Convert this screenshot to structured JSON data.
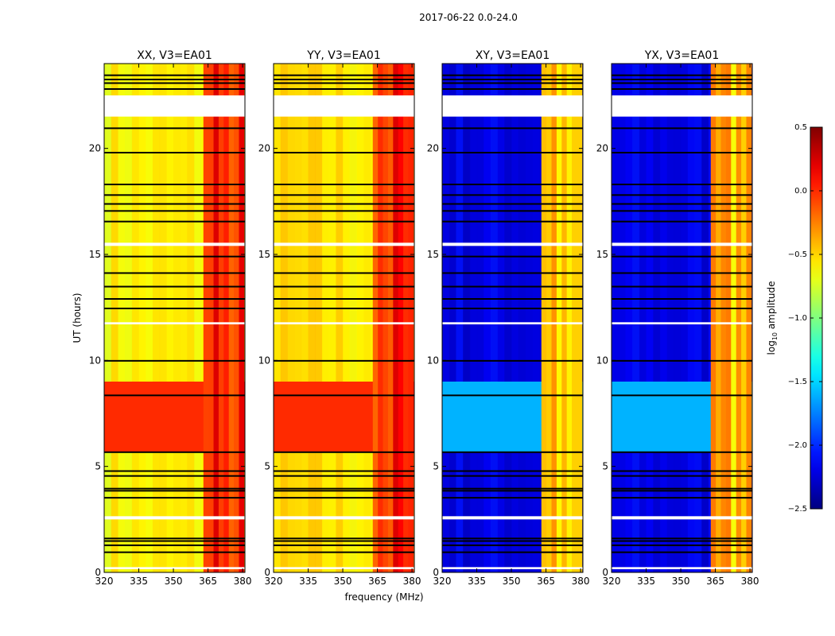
{
  "figure": {
    "suptitle": "2017-06-22 0.0-24.0",
    "xlabel": "frequency (MHz)",
    "ylabel": "UT (hours)"
  },
  "colorbar": {
    "label_base": "log",
    "label_sub": "10",
    "label_rest": " amplitude",
    "ticks": [
      "0.5",
      "0.0",
      "−0.5",
      "−1.0",
      "−1.5",
      "−2.0",
      "−2.5"
    ],
    "tick_values": [
      0.5,
      0.0,
      -0.5,
      -1.0,
      -1.5,
      -2.0,
      -2.5
    ],
    "range": [
      -2.5,
      0.5
    ],
    "colormap": "jet"
  },
  "chart_data": {
    "type": "heatmap",
    "x_range_mhz": [
      320,
      381
    ],
    "y_range_hours": [
      0,
      24
    ],
    "x_ticks": [
      "320",
      "335",
      "350",
      "365",
      "380"
    ],
    "x_tick_values": [
      320,
      335,
      350,
      365,
      380
    ],
    "y_ticks": [
      "0",
      "5",
      "10",
      "15",
      "20"
    ],
    "y_tick_values": [
      0,
      5,
      10,
      15,
      20
    ],
    "value_scale": "log10 amplitude",
    "gaps_hours": [
      [
        21.5,
        22.5
      ],
      [
        15.4,
        15.55
      ],
      [
        11.7,
        11.8
      ],
      [
        2.5,
        2.65
      ],
      [
        0.15,
        0.25
      ]
    ],
    "flagged_lines_hours": [
      0.95,
      1.28,
      1.48,
      1.6,
      3.52,
      3.85,
      3.95,
      4.55,
      4.78,
      5.67,
      8.35,
      9.98,
      12.45,
      12.9,
      13.48,
      14.12,
      14.9,
      16.55,
      17.05,
      17.38,
      17.8,
      18.3,
      19.8,
      20.95,
      22.8,
      23.08,
      23.25,
      23.45
    ],
    "panels": [
      {
        "title": "XX, V3=EA01",
        "background_level": -0.6,
        "strong_period_level": 0.0,
        "strong_period_hours": [
          5.7,
          9.0
        ],
        "band_level": 0.25,
        "band_mhz": [
          363,
          380
        ]
      },
      {
        "title": "YY, V3=EA01",
        "background_level": -0.55,
        "strong_period_level": 0.0,
        "strong_period_hours": [
          5.7,
          9.0
        ],
        "band_level": 0.25,
        "band_mhz": [
          363,
          380
        ]
      },
      {
        "title": "XY, V3=EA01",
        "background_level": -2.2,
        "strong_period_level": -1.6,
        "strong_period_hours": [
          5.7,
          9.0
        ],
        "band_level": -0.2,
        "band_mhz": [
          363,
          380
        ]
      },
      {
        "title": "YX, V3=EA01",
        "background_level": -2.2,
        "strong_period_level": -1.6,
        "strong_period_hours": [
          5.7,
          9.0
        ],
        "band_level": -0.2,
        "band_mhz": [
          363,
          380
        ]
      }
    ]
  }
}
